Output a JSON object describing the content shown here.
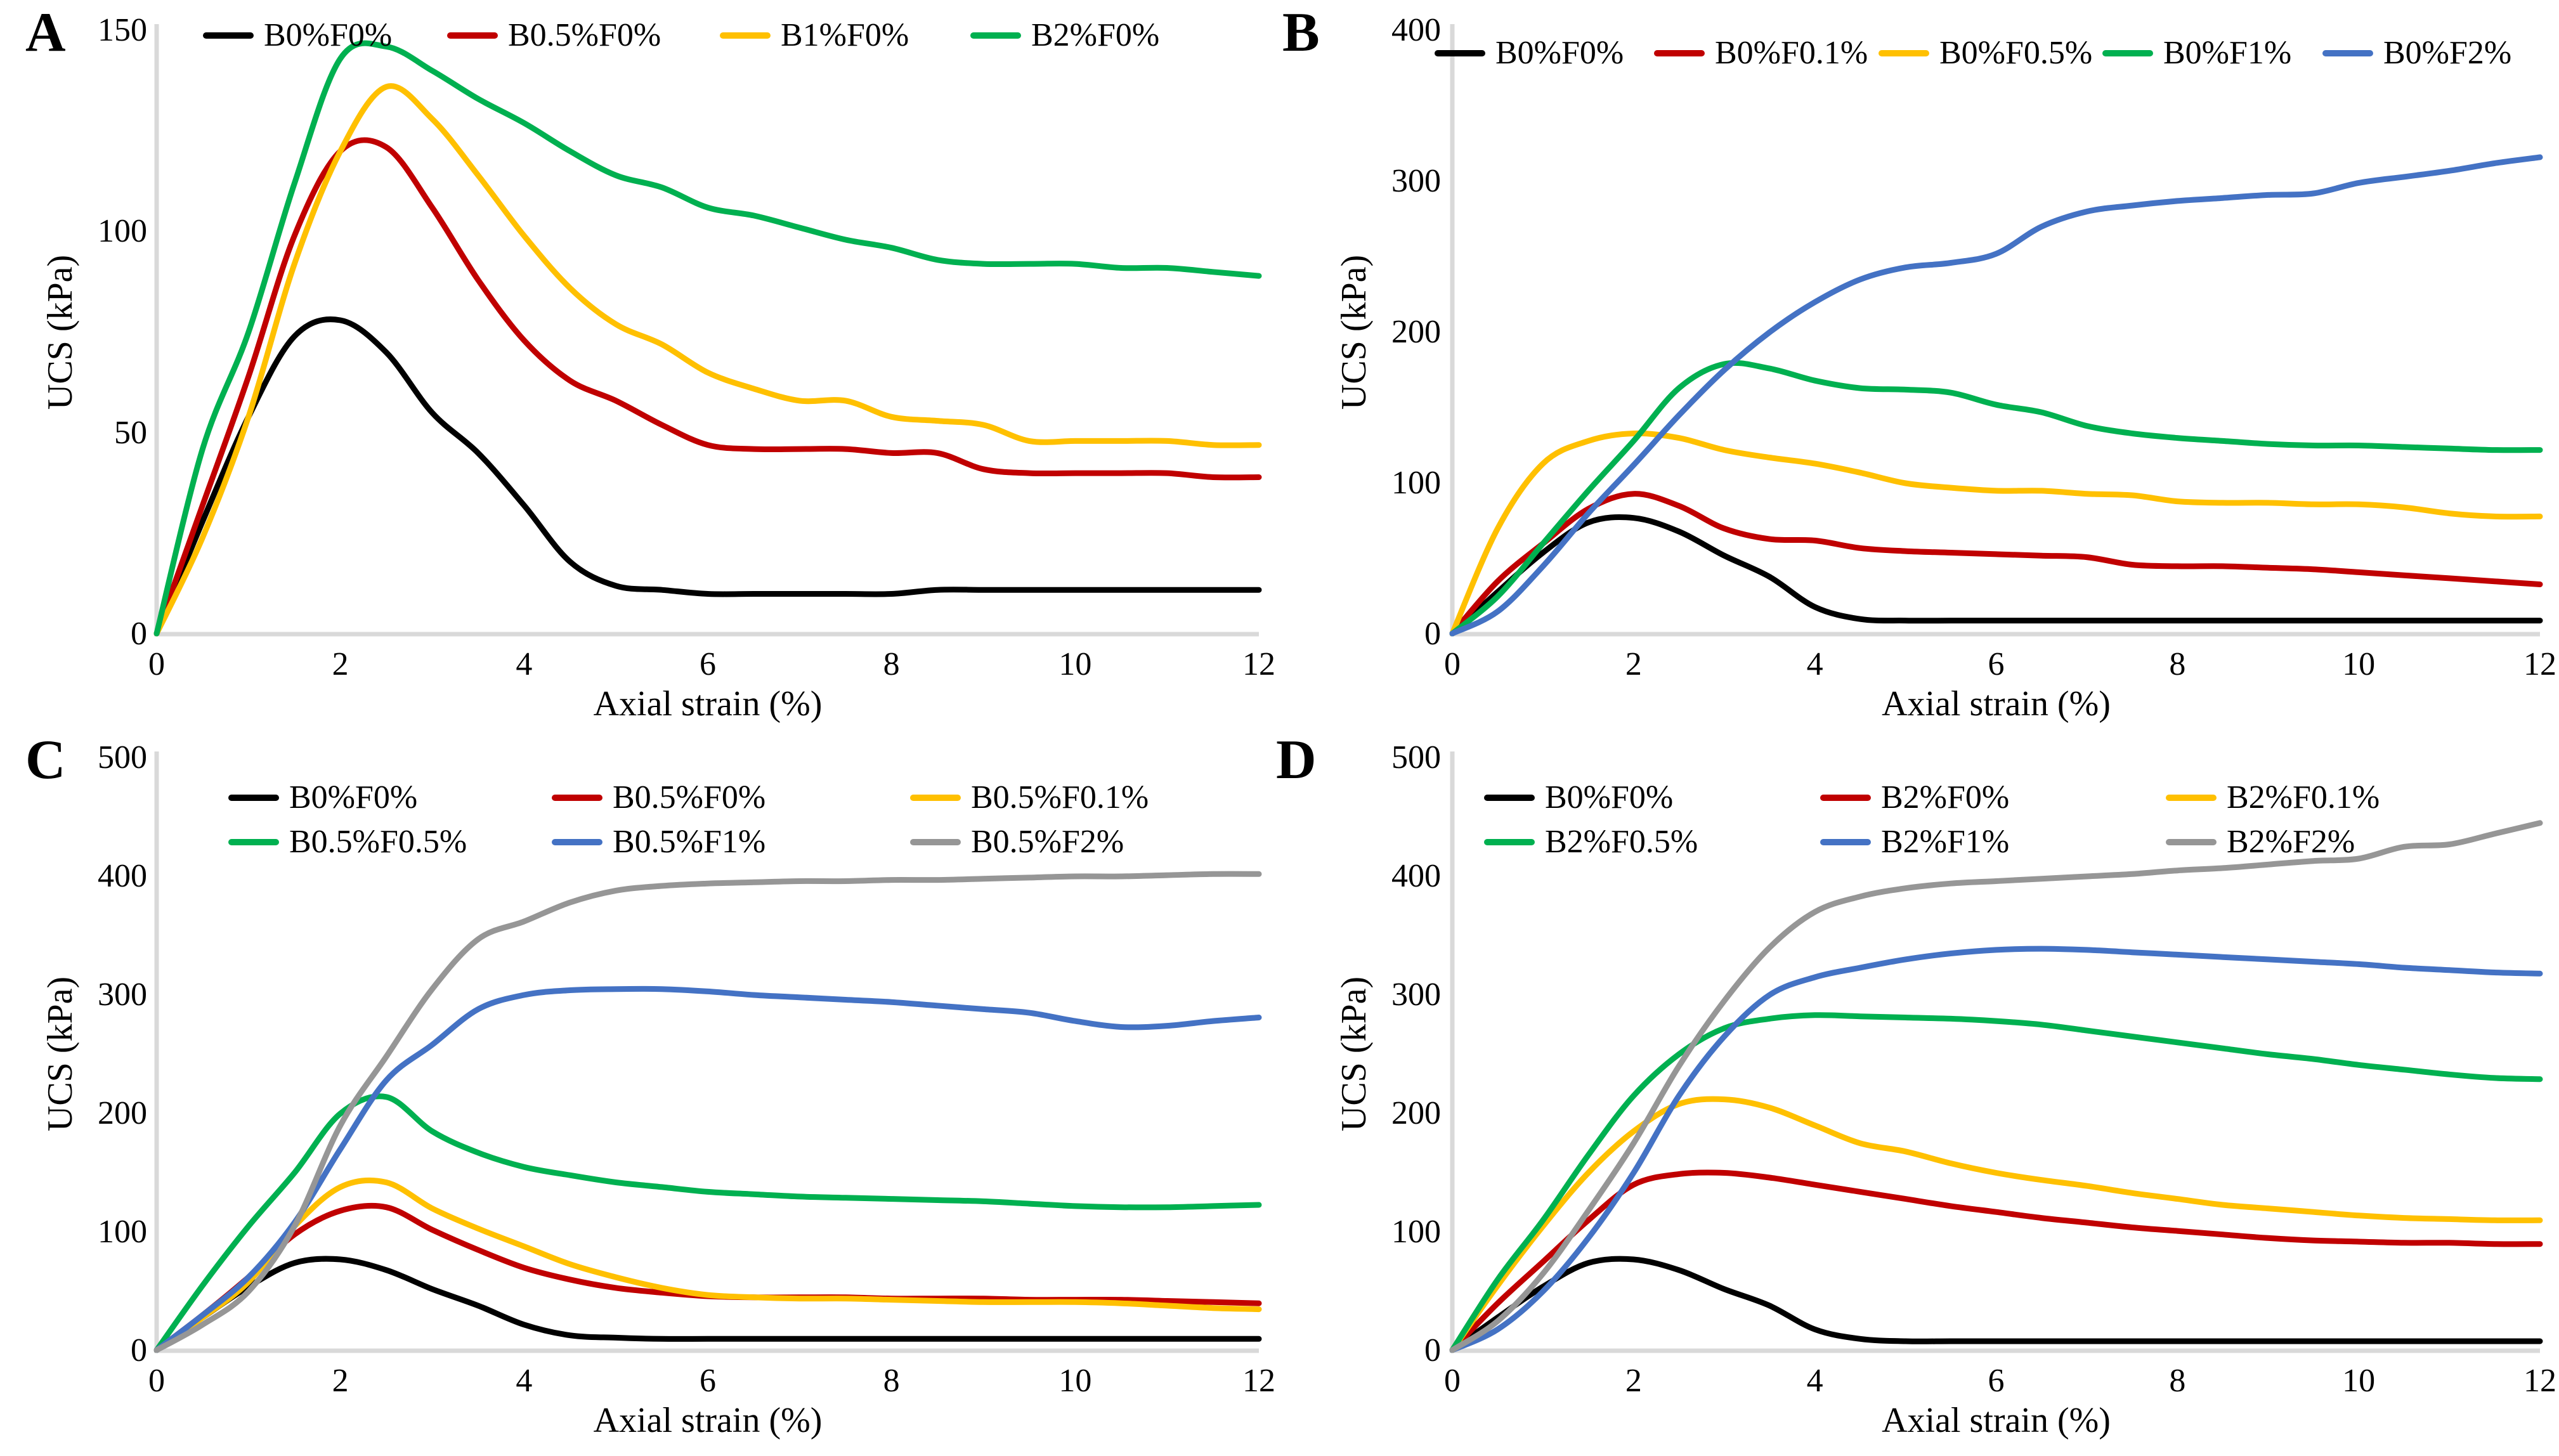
{
  "figure": {
    "xlabel": "Axial strain (%)",
    "ylabel": "UCS (kPa)",
    "axis_color": "#d9d9d9",
    "series_colors": {
      "black": "#000000",
      "red": "#c00000",
      "yellow": "#ffc000",
      "green": "#00b050",
      "blue": "#4472c4",
      "gray": "#969696"
    }
  },
  "chart_data": [
    {
      "panel": "A",
      "type": "line",
      "xlabel": "Axial strain (%)",
      "ylabel": "UCS (kPa)",
      "xlim": [
        0,
        12
      ],
      "ylim": [
        0,
        150
      ],
      "xticks": [
        0,
        2,
        4,
        6,
        8,
        10,
        12
      ],
      "yticks": [
        0,
        50,
        100,
        150
      ],
      "grid": false,
      "legend_position": "top single row",
      "x": [
        0,
        0.5,
        1,
        1.5,
        2,
        2.5,
        3,
        3.5,
        4,
        4.5,
        5,
        5.5,
        6,
        6.5,
        7,
        7.5,
        8,
        8.5,
        9,
        9.5,
        10,
        10.5,
        11,
        11.5,
        12
      ],
      "series": [
        {
          "name": "B0%F0%",
          "color": "#000000",
          "values": [
            0,
            28,
            54,
            74,
            78,
            70,
            55,
            45,
            32,
            18,
            12,
            11,
            10,
            10,
            10,
            10,
            10,
            11,
            11,
            11,
            11,
            11,
            11,
            11,
            11
          ]
        },
        {
          "name": "B0.5%F0%",
          "color": "#c00000",
          "values": [
            0,
            32,
            64,
            99,
            120,
            121,
            106,
            88,
            73,
            63,
            58,
            52,
            47,
            46,
            46,
            46,
            45,
            45,
            41,
            40,
            40,
            40,
            40,
            39,
            39
          ]
        },
        {
          "name": "B1%F0%",
          "color": "#ffc000",
          "values": [
            0,
            24,
            54,
            92,
            120,
            136,
            128,
            114,
            99,
            86,
            77,
            72,
            65,
            61,
            58,
            58,
            54,
            53,
            52,
            48,
            48,
            48,
            48,
            47,
            47
          ]
        },
        {
          "name": "B2%F0%",
          "color": "#00b050",
          "values": [
            0,
            46,
            75,
            112,
            143,
            146,
            140,
            133,
            127,
            120,
            114,
            111,
            106,
            104,
            101,
            98,
            96,
            93,
            92,
            92,
            92,
            91,
            91,
            90,
            89
          ]
        }
      ]
    },
    {
      "panel": "B",
      "type": "line",
      "xlabel": "Axial strain (%)",
      "ylabel": "UCS (kPa)",
      "xlim": [
        0,
        12
      ],
      "ylim": [
        0,
        400
      ],
      "xticks": [
        0,
        2,
        4,
        6,
        8,
        10,
        12
      ],
      "yticks": [
        0,
        100,
        200,
        300,
        400
      ],
      "grid": false,
      "legend_position": "top single row",
      "x": [
        0,
        0.5,
        1,
        1.5,
        2,
        2.5,
        3,
        3.5,
        4,
        4.5,
        5,
        5.5,
        6,
        6.5,
        7,
        7.5,
        8,
        8.5,
        9,
        9.5,
        10,
        10.5,
        11,
        11.5,
        12
      ],
      "series": [
        {
          "name": "B0%F0%",
          "color": "#000000",
          "values": [
            0,
            28,
            54,
            74,
            77,
            68,
            52,
            38,
            18,
            10,
            9,
            9,
            9,
            9,
            9,
            9,
            9,
            9,
            9,
            9,
            9,
            9,
            9,
            9,
            9
          ]
        },
        {
          "name": "B0%F0.1%",
          "color": "#c00000",
          "values": [
            0,
            35,
            60,
            83,
            93,
            85,
            70,
            63,
            62,
            57,
            55,
            54,
            53,
            52,
            51,
            46,
            45,
            45,
            44,
            43,
            41,
            39,
            37,
            35,
            33
          ]
        },
        {
          "name": "B0%F0.5%",
          "color": "#ffc000",
          "values": [
            0,
            70,
            113,
            128,
            133,
            130,
            122,
            117,
            113,
            107,
            100,
            97,
            95,
            95,
            93,
            92,
            88,
            87,
            87,
            86,
            86,
            84,
            80,
            78,
            78
          ]
        },
        {
          "name": "B0%F1%",
          "color": "#00b050",
          "values": [
            0,
            25,
            60,
            95,
            128,
            163,
            179,
            176,
            168,
            163,
            162,
            160,
            152,
            147,
            138,
            133,
            130,
            128,
            126,
            125,
            125,
            124,
            123,
            122,
            122
          ]
        },
        {
          "name": "B0%F2%",
          "color": "#4472c4",
          "values": [
            0,
            15,
            45,
            80,
            112,
            145,
            175,
            200,
            220,
            235,
            243,
            246,
            252,
            270,
            280,
            284,
            287,
            289,
            291,
            292,
            299,
            303,
            307,
            312,
            316
          ]
        }
      ]
    },
    {
      "panel": "C",
      "type": "line",
      "xlabel": "Axial strain (%)",
      "ylabel": "UCS (kPa)",
      "xlim": [
        0,
        12
      ],
      "ylim": [
        0,
        500
      ],
      "xticks": [
        0,
        2,
        4,
        6,
        8,
        10,
        12
      ],
      "yticks": [
        0,
        100,
        200,
        300,
        400,
        500
      ],
      "grid": false,
      "legend_position": "top-left grid 2 rows x 3 cols",
      "x": [
        0,
        0.5,
        1,
        1.5,
        2,
        2.5,
        3,
        3.5,
        4,
        4.5,
        5,
        5.5,
        6,
        6.5,
        7,
        7.5,
        8,
        8.5,
        9,
        9.5,
        10,
        10.5,
        11,
        11.5,
        12
      ],
      "series": [
        {
          "name": "B0%F0%",
          "color": "#000000",
          "values": [
            0,
            28,
            54,
            74,
            77,
            68,
            52,
            38,
            22,
            13,
            11,
            10,
            10,
            10,
            10,
            10,
            10,
            10,
            10,
            10,
            10,
            10,
            10,
            10,
            10
          ]
        },
        {
          "name": "B0.5%F0%",
          "color": "#c00000",
          "values": [
            0,
            30,
            62,
            98,
            118,
            121,
            102,
            85,
            70,
            60,
            53,
            49,
            46,
            45,
            45,
            45,
            44,
            44,
            44,
            43,
            43,
            43,
            42,
            41,
            40
          ]
        },
        {
          "name": "B0.5%F0.1%",
          "color": "#ffc000",
          "values": [
            0,
            28,
            58,
            105,
            138,
            142,
            120,
            103,
            88,
            73,
            62,
            53,
            47,
            45,
            44,
            44,
            43,
            42,
            41,
            41,
            41,
            40,
            38,
            36,
            35
          ]
        },
        {
          "name": "B0.5%F0.5%",
          "color": "#00b050",
          "values": [
            0,
            55,
            105,
            150,
            200,
            214,
            185,
            167,
            155,
            148,
            142,
            138,
            134,
            132,
            130,
            129,
            128,
            127,
            126,
            124,
            122,
            121,
            121,
            122,
            123
          ]
        },
        {
          "name": "B0.5%F1%",
          "color": "#4472c4",
          "values": [
            0,
            30,
            62,
            108,
            170,
            228,
            258,
            288,
            300,
            304,
            305,
            305,
            303,
            300,
            298,
            296,
            294,
            291,
            288,
            285,
            278,
            273,
            274,
            278,
            281
          ]
        },
        {
          "name": "B0.5%F2%",
          "color": "#969696",
          "values": [
            0,
            22,
            50,
            105,
            190,
            248,
            305,
            347,
            362,
            378,
            388,
            392,
            394,
            395,
            396,
            396,
            397,
            397,
            398,
            399,
            400,
            400,
            401,
            402,
            402
          ]
        }
      ]
    },
    {
      "panel": "D",
      "type": "line",
      "xlabel": "Axial strain (%)",
      "ylabel": "UCS (kPa)",
      "xlim": [
        0,
        12
      ],
      "ylim": [
        0,
        500
      ],
      "xticks": [
        0,
        2,
        4,
        6,
        8,
        10,
        12
      ],
      "yticks": [
        0,
        100,
        200,
        300,
        400,
        500
      ],
      "grid": false,
      "legend_position": "top-left grid 2 rows x 3 cols",
      "x": [
        0,
        0.5,
        1,
        1.5,
        2,
        2.5,
        3,
        3.5,
        4,
        4.5,
        5,
        5.5,
        6,
        6.5,
        7,
        7.5,
        8,
        8.5,
        9,
        9.5,
        10,
        10.5,
        11,
        11.5,
        12
      ],
      "series": [
        {
          "name": "B0%F0%",
          "color": "#000000",
          "values": [
            0,
            28,
            54,
            74,
            77,
            68,
            52,
            38,
            18,
            10,
            8,
            8,
            8,
            8,
            8,
            8,
            8,
            8,
            8,
            8,
            8,
            8,
            8,
            8,
            8
          ]
        },
        {
          "name": "B2%F0%",
          "color": "#c00000",
          "values": [
            0,
            40,
            75,
            110,
            140,
            149,
            150,
            146,
            140,
            134,
            128,
            122,
            117,
            112,
            108,
            104,
            101,
            98,
            95,
            93,
            92,
            91,
            91,
            90,
            90
          ]
        },
        {
          "name": "B2%F0.1%",
          "color": "#ffc000",
          "values": [
            0,
            55,
            105,
            150,
            185,
            208,
            212,
            205,
            190,
            175,
            168,
            158,
            150,
            144,
            139,
            133,
            128,
            123,
            120,
            117,
            114,
            112,
            111,
            110,
            110
          ]
        },
        {
          "name": "B2%F0.5%",
          "color": "#00b050",
          "values": [
            0,
            60,
            110,
            165,
            215,
            250,
            272,
            280,
            283,
            282,
            281,
            280,
            278,
            275,
            270,
            265,
            260,
            255,
            250,
            246,
            241,
            237,
            233,
            230,
            229
          ]
        },
        {
          "name": "B2%F1%",
          "color": "#4472c4",
          "values": [
            0,
            18,
            50,
            95,
            150,
            215,
            265,
            300,
            315,
            323,
            330,
            335,
            338,
            339,
            338,
            336,
            334,
            332,
            330,
            328,
            326,
            323,
            321,
            319,
            318
          ]
        },
        {
          "name": "B2%F2%",
          "color": "#969696",
          "values": [
            0,
            25,
            65,
            118,
            175,
            240,
            295,
            340,
            370,
            383,
            390,
            394,
            396,
            398,
            400,
            402,
            405,
            407,
            410,
            413,
            415,
            425,
            427,
            436,
            445
          ]
        }
      ]
    }
  ]
}
